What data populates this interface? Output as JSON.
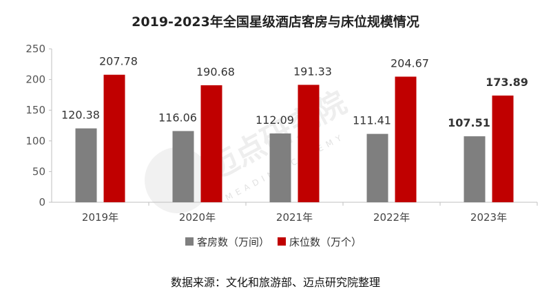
{
  "chart_data": {
    "type": "bar",
    "title": "2019-2023年全国星级酒店客房与床位规模情况",
    "categories": [
      "2019年",
      "2020年",
      "2021年",
      "2022年",
      "2023年"
    ],
    "series": [
      {
        "name": "客房数（万间）",
        "values": [
          120.38,
          116.06,
          112.09,
          111.41,
          107.51
        ],
        "color": "#7f7f7f"
      },
      {
        "name": "床位数（万个）",
        "values": [
          207.78,
          190.68,
          191.33,
          204.67,
          173.89
        ],
        "color": "#c00000"
      }
    ],
    "data_labels": {
      "rooms": [
        "120.38",
        "116.06",
        "112.09",
        "111.41",
        "107.51"
      ],
      "beds": [
        "207.78",
        "190.68",
        "191.33",
        "204.67",
        "173.89"
      ]
    },
    "yticks": [
      "0",
      "50",
      "100",
      "150",
      "200",
      "250"
    ],
    "ylim": [
      0,
      250
    ],
    "xlabel": "",
    "ylabel": "",
    "legend": "bottom",
    "grid": false,
    "highlight_color": "#c00000",
    "label_color": "#333333"
  },
  "watermark": {
    "text": "迈点研究院",
    "sub": "MEADIN ACADEMY"
  },
  "source_text": "数据来源：文化和旅游部、迈点研究院整理"
}
